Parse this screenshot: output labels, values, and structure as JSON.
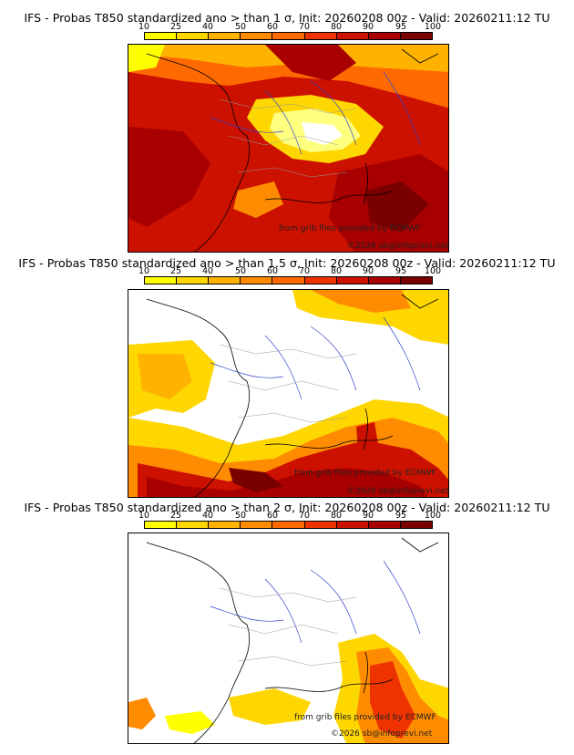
{
  "panels": [
    {
      "title": "IFS - Probas T850  standardized ano > than 1 σ, Init: 20260208 00z - Valid: 20260211:12 TU",
      "legend_ticks": [
        "10",
        "25",
        "40",
        "50",
        "60",
        "70",
        "80",
        "90",
        "95",
        "100"
      ],
      "credit_line1": "from grib files provided by ECMWF",
      "credit_line2": "©2026 sb@infoprevi.net"
    },
    {
      "title": "IFS - Probas T850  standardized ano > than 1.5 σ, Init: 20260208 00z - Valid: 20260211:12 TU",
      "legend_ticks": [
        "10",
        "25",
        "40",
        "50",
        "60",
        "70",
        "80",
        "90",
        "95",
        "100"
      ],
      "credit_line1": "from grib files provided by ECMWF",
      "credit_line2": "©2026 sb@infoprevi.net"
    },
    {
      "title": "IFS - Probas T850  standardized ano > than 2 σ, Init: 20260208 00z - Valid: 20260211:12 TU",
      "legend_ticks": [
        "10",
        "25",
        "40",
        "50",
        "60",
        "70",
        "80",
        "90",
        "95",
        "100"
      ],
      "credit_line1": "from grib files provided by ECMWF",
      "credit_line2": "©2026 sb@infoprevi.net"
    }
  ],
  "legend_colors": [
    "#ffff00",
    "#ffd700",
    "#ffb300",
    "#ff8c00",
    "#ff6a00",
    "#ee3300",
    "#cc1100",
    "#a80000",
    "#7a0000"
  ],
  "map_colors": {
    "coast": "#000000",
    "rivers": "#3344cc",
    "borders": "#999999"
  }
}
